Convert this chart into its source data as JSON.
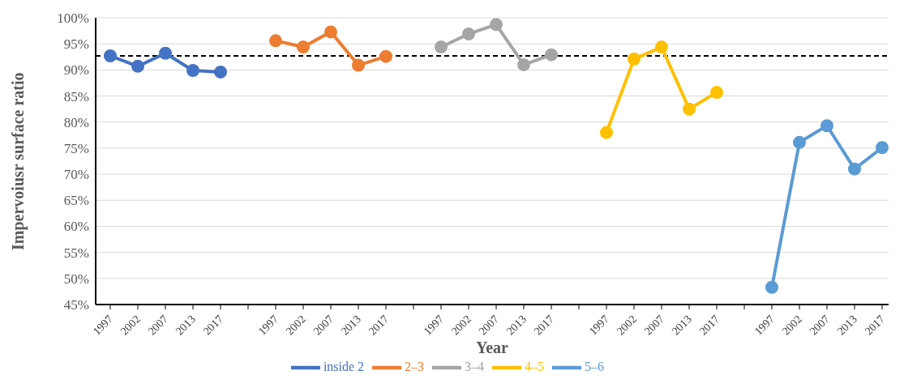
{
  "chart_data": {
    "type": "line",
    "xlabel": "Year",
    "ylabel": "Impervoiusr surface ratio",
    "categories": [
      "1997",
      "2002",
      "2007",
      "2013",
      "2017",
      null,
      "1997",
      "2002",
      "2007",
      "2013",
      "2017",
      null,
      "1997",
      "2002",
      "2007",
      "2013",
      "2017",
      null,
      "1997",
      "2002",
      "2007",
      "2013",
      "2017",
      null,
      "1997",
      "2002",
      "2007",
      "2013",
      "2017"
    ],
    "series": [
      {
        "name": "inside 2",
        "color": "#4472c4",
        "values": [
          92.7,
          90.7,
          93.2,
          89.9,
          89.6,
          null,
          null,
          null,
          null,
          null,
          null,
          null,
          null,
          null,
          null,
          null,
          null,
          null,
          null,
          null,
          null,
          null,
          null,
          null,
          null,
          null,
          null,
          null,
          null
        ]
      },
      {
        "name": "2–3",
        "color": "#ed7d31",
        "values": [
          null,
          null,
          null,
          null,
          null,
          null,
          95.6,
          94.4,
          97.3,
          90.9,
          92.6,
          null,
          null,
          null,
          null,
          null,
          null,
          null,
          null,
          null,
          null,
          null,
          null,
          null,
          null,
          null,
          null,
          null,
          null
        ]
      },
      {
        "name": "3–4",
        "color": "#a5a5a5",
        "values": [
          null,
          null,
          null,
          null,
          null,
          null,
          null,
          null,
          null,
          null,
          null,
          null,
          94.4,
          96.9,
          98.7,
          91.0,
          92.9,
          null,
          null,
          null,
          null,
          null,
          null,
          null,
          null,
          null,
          null,
          null,
          null
        ]
      },
      {
        "name": "4–5",
        "color": "#ffc000",
        "values": [
          null,
          null,
          null,
          null,
          null,
          null,
          null,
          null,
          null,
          null,
          null,
          null,
          null,
          null,
          null,
          null,
          null,
          null,
          78.0,
          92.1,
          94.4,
          82.5,
          85.7,
          null,
          null,
          null,
          null,
          null,
          null
        ]
      },
      {
        "name": "5–6",
        "color": "#5b9bd5",
        "values": [
          null,
          null,
          null,
          null,
          null,
          null,
          null,
          null,
          null,
          null,
          null,
          null,
          null,
          null,
          null,
          null,
          null,
          null,
          null,
          null,
          null,
          null,
          null,
          null,
          48.3,
          76.1,
          79.3,
          71.0,
          75.1
        ]
      }
    ],
    "ylim": [
      45,
      100
    ],
    "yticks": [
      {
        "value": 45,
        "label": "45%"
      },
      {
        "value": 50,
        "label": "50%"
      },
      {
        "value": 55,
        "label": "55%"
      },
      {
        "value": 60,
        "label": "60%"
      },
      {
        "value": 65,
        "label": "65%"
      },
      {
        "value": 70,
        "label": "70%"
      },
      {
        "value": 75,
        "label": "75%"
      },
      {
        "value": 80,
        "label": "80%"
      },
      {
        "value": 85,
        "label": "85%"
      },
      {
        "value": 90,
        "label": "90%"
      },
      {
        "value": 95,
        "label": "95%"
      },
      {
        "value": 100,
        "label": "100%"
      }
    ],
    "ref_lines": [
      {
        "axis": "y",
        "value": 92.7,
        "color": "#000000",
        "line_style": "dashed"
      }
    ],
    "grid": "y",
    "legend": "bottom",
    "marker": "circle",
    "line_style": "solid"
  }
}
